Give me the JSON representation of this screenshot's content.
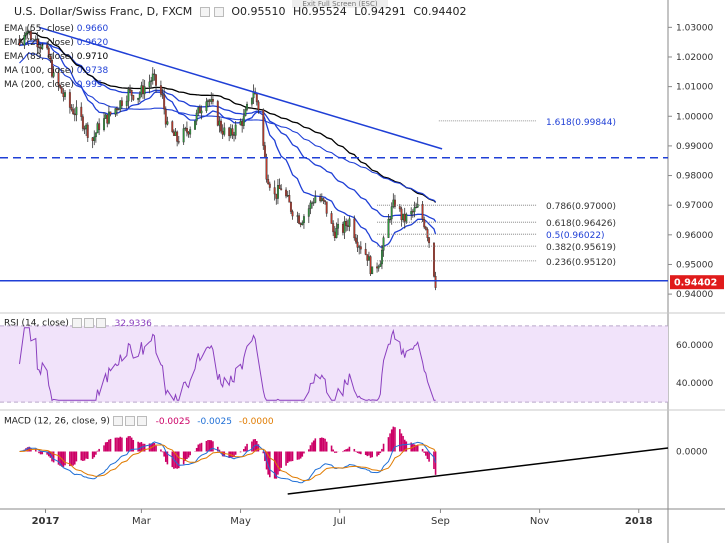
{
  "header": {
    "symbol_title": "U.S. Dollar/Swiss Franc, D, FXCM",
    "open": "O0.95510",
    "high": "H0.95524",
    "low": "L0.94291",
    "close": "C0.94402",
    "exit_fullscreen": "Exit Full Screen (ESC)"
  },
  "legend": [
    {
      "label": "EMA (55, close)",
      "value": "0.9660",
      "color": "#1f3fd6"
    },
    {
      "label": "EMA (21, close)",
      "value": "0.9620",
      "color": "#1f3fd6"
    },
    {
      "label": "EMA (89, close)",
      "value": "0.9710",
      "color": "#000000"
    },
    {
      "label": "MA (100, close)",
      "value": "0.9738",
      "color": "#1f3fd6"
    },
    {
      "label": "MA (200, close)",
      "value": "0.995",
      "color": "#1f3fd6"
    }
  ],
  "chart_data": {
    "type": "candlestick",
    "instrument": "U.S. Dollar/Swiss Franc, D, FXCM",
    "price_axis": {
      "ticks": [
        "1.03000",
        "1.02000",
        "1.01000",
        "1.00000",
        "0.99000",
        "0.98000",
        "0.97000",
        "0.96000",
        "0.95000",
        "0.94000"
      ],
      "range": [
        0.937,
        1.0345
      ],
      "last_price": "0.94402"
    },
    "time_axis": {
      "ticks": [
        "2017",
        "Mar",
        "May",
        "Jul",
        "Sep",
        "Nov",
        "2018"
      ]
    },
    "close_path": [
      [
        "2016-12-16",
        1.024
      ],
      [
        "2016-12-20",
        1.03
      ],
      [
        "2016-12-23",
        1.027
      ],
      [
        "2016-12-28",
        1.025
      ],
      [
        "2017-01-03",
        1.02
      ],
      [
        "2017-01-06",
        1.013
      ],
      [
        "2017-01-10",
        1.009
      ],
      [
        "2017-01-16",
        1.003
      ],
      [
        "2017-01-20",
        1.001
      ],
      [
        "2017-01-24",
        0.998
      ],
      [
        "2017-01-30",
        0.992
      ],
      [
        "2017-02-03",
        0.997
      ],
      [
        "2017-02-09",
        1.0
      ],
      [
        "2017-02-15",
        1.004
      ],
      [
        "2017-02-21",
        1.008
      ],
      [
        "2017-02-27",
        1.007
      ],
      [
        "2017-03-03",
        1.01
      ],
      [
        "2017-03-08",
        1.013
      ],
      [
        "2017-03-14",
        1.006
      ],
      [
        "2017-03-17",
        0.996
      ],
      [
        "2017-03-23",
        0.992
      ],
      [
        "2017-03-29",
        0.995
      ],
      [
        "2017-04-04",
        1.0
      ],
      [
        "2017-04-10",
        1.007
      ],
      [
        "2017-04-14",
        1.003
      ],
      [
        "2017-04-19",
        0.996
      ],
      [
        "2017-04-24",
        0.993
      ],
      [
        "2017-04-28",
        0.996
      ],
      [
        "2017-05-03",
        0.999
      ],
      [
        "2017-05-09",
        1.009
      ],
      [
        "2017-05-12",
        1.003
      ],
      [
        "2017-05-17",
        0.981
      ],
      [
        "2017-05-22",
        0.973
      ],
      [
        "2017-05-26",
        0.976
      ],
      [
        "2017-06-01",
        0.969
      ],
      [
        "2017-06-07",
        0.965
      ],
      [
        "2017-06-12",
        0.969
      ],
      [
        "2017-06-16",
        0.973
      ],
      [
        "2017-06-22",
        0.97
      ],
      [
        "2017-06-27",
        0.961
      ],
      [
        "2017-07-03",
        0.962
      ],
      [
        "2017-07-07",
        0.965
      ],
      [
        "2017-07-12",
        0.958
      ],
      [
        "2017-07-18",
        0.953
      ],
      [
        "2017-07-21",
        0.947
      ],
      [
        "2017-07-26",
        0.952
      ],
      [
        "2017-08-01",
        0.967
      ],
      [
        "2017-08-04",
        0.971
      ],
      [
        "2017-08-09",
        0.965
      ],
      [
        "2017-08-14",
        0.967
      ],
      [
        "2017-08-18",
        0.969
      ],
      [
        "2017-08-23",
        0.963
      ],
      [
        "2017-08-25",
        0.958
      ],
      [
        "2017-08-29",
        0.944
      ]
    ],
    "fibonacci": [
      {
        "label": "1.618(0.99844)",
        "value": 0.99844
      },
      {
        "label": "0.786(0.97000)",
        "value": 0.97
      },
      {
        "label": "0.618(0.96426)",
        "value": 0.96426
      },
      {
        "label": "0.5(0.96022)",
        "value": 0.96022
      },
      {
        "label": "0.382(0.95619)",
        "value": 0.95619
      },
      {
        "label": "0.236(0.95120)",
        "value": 0.9512
      }
    ],
    "horizontal_levels": [
      {
        "value": 0.986,
        "style": "dashed",
        "color": "#1f3fd6"
      },
      {
        "value": 0.9445,
        "style": "solid",
        "color": "#1f3fd6"
      }
    ],
    "trendline": {
      "from": [
        "2016-12-28",
        1.03
      ],
      "to": [
        "2017-09-02",
        0.989
      ],
      "color": "#1f3fd6"
    }
  },
  "rsi": {
    "title": "RSI (14, close)",
    "value": "32.9336",
    "ticks": [
      "60.0000",
      "40.0000"
    ],
    "color": "#8a3fbf"
  },
  "macd": {
    "title": "MACD (12, 26, close, 9)",
    "values": [
      "-0.0025",
      "-0.0025",
      "-0.0000"
    ],
    "value_colors": [
      "#cc0066",
      "#1f6fd6",
      "#e07b00"
    ],
    "ticks": [
      "0.0000"
    ]
  },
  "colors": {
    "up": "#2e9e3e",
    "down": "#c0392b",
    "price_tag": "#e01b1b"
  }
}
